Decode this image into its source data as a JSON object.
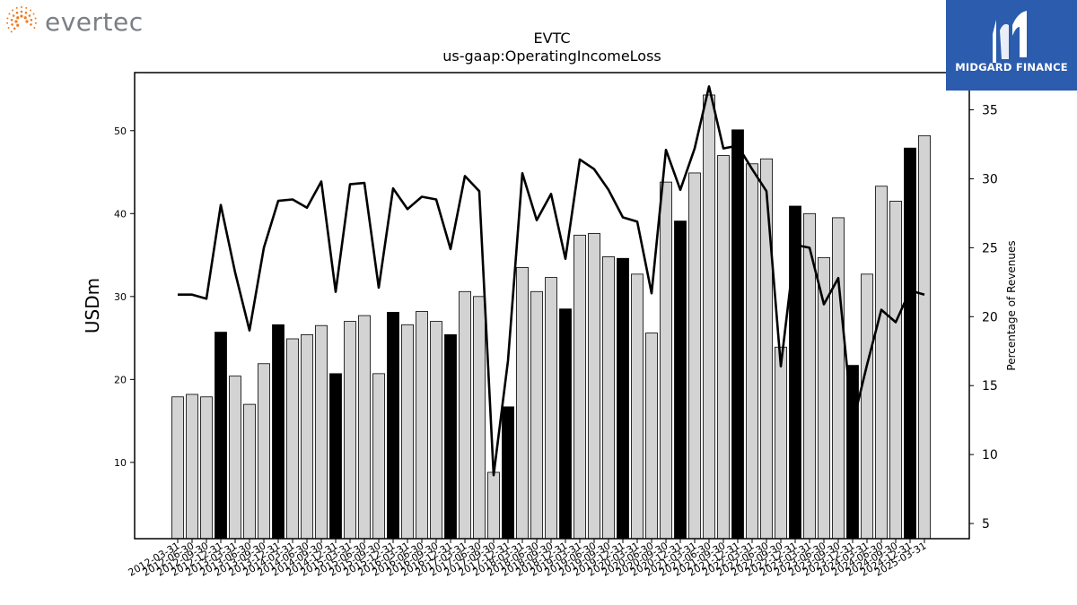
{
  "brand": {
    "left_logo_text": "evertec",
    "right_logo_text": "MIDGARD FINANCE"
  },
  "colors": {
    "annual_bar": "#000000",
    "quarter_bar": "#d3d3d3",
    "line": "#000000",
    "right_logo_bg": "#2b5cad",
    "dots_orange": "#f07b22"
  },
  "chart_data": {
    "type": "bar",
    "title": "EVTC",
    "subtitle": "us-gaap:OperatingIncomeLoss",
    "ylabel": "USDm",
    "y2label": "Percentage of Revenues",
    "ylim": [
      0.8,
      57
    ],
    "y2lim": [
      3.9,
      37.7
    ],
    "yticks": [
      10,
      20,
      30,
      40,
      50
    ],
    "y2ticks": [
      5,
      10,
      15,
      20,
      25,
      30,
      35
    ],
    "categories": [
      "2012-03-31",
      "2012-06-30",
      "2012-09-30",
      "2012-12-31",
      "2013-03-31",
      "2013-06-30",
      "2013-09-30",
      "2013-12-31",
      "2014-03-31",
      "2014-06-30",
      "2014-09-30",
      "2014-12-31",
      "2015-03-31",
      "2015-06-30",
      "2015-09-30",
      "2015-12-31",
      "2016-03-31",
      "2016-06-30",
      "2016-09-30",
      "2016-12-31",
      "2017-03-31",
      "2017-06-30",
      "2017-09-30",
      "2017-12-31",
      "2018-03-31",
      "2018-06-30",
      "2018-09-30",
      "2018-12-31",
      "2019-03-31",
      "2019-06-30",
      "2019-09-30",
      "2019-12-31",
      "2020-03-31",
      "2020-06-30",
      "2020-09-30",
      "2020-12-31",
      "2021-03-31",
      "2021-06-30",
      "2021-09-30",
      "2021-12-31",
      "2022-03-31",
      "2022-06-30",
      "2022-09-30",
      "2022-12-31",
      "2023-03-31",
      "2023-06-30",
      "2023-09-30",
      "2023-12-31",
      "2024-03-31",
      "2024-06-30",
      "2024-09-30",
      "2024-12-31",
      "2025-03-31"
    ],
    "series": [
      {
        "axis": "left",
        "kind": "bar",
        "values": [
          17.9,
          18.2,
          17.9,
          25.7,
          20.4,
          17.0,
          21.9,
          26.6,
          24.9,
          25.4,
          26.5,
          20.7,
          27.0,
          27.7,
          20.7,
          28.1,
          26.6,
          28.2,
          27.0,
          25.4,
          30.6,
          30.0,
          8.8,
          16.7,
          33.5,
          30.6,
          32.3,
          28.5,
          37.4,
          37.6,
          34.8,
          34.6,
          32.7,
          25.6,
          43.8,
          39.1,
          44.9,
          54.3,
          47.0,
          50.1,
          46.0,
          46.6,
          23.9,
          40.9,
          40.0,
          34.7,
          39.5,
          21.7,
          32.7,
          43.3,
          41.5,
          47.9,
          49.4
        ],
        "annual": [
          false,
          false,
          false,
          true,
          false,
          false,
          false,
          true,
          false,
          false,
          false,
          true,
          false,
          false,
          false,
          true,
          false,
          false,
          false,
          true,
          false,
          false,
          false,
          true,
          false,
          false,
          false,
          true,
          false,
          false,
          false,
          true,
          false,
          false,
          false,
          true,
          false,
          false,
          false,
          true,
          false,
          false,
          false,
          true,
          false,
          false,
          false,
          true,
          false,
          false,
          false,
          true,
          false
        ]
      },
      {
        "axis": "right",
        "kind": "line",
        "values": [
          21.6,
          21.6,
          21.3,
          28.1,
          23.2,
          19.0,
          25.0,
          28.4,
          28.5,
          27.9,
          29.8,
          21.8,
          29.6,
          29.7,
          22.1,
          29.3,
          27.8,
          28.7,
          28.5,
          24.9,
          30.2,
          29.1,
          8.5,
          16.8,
          30.4,
          27.0,
          28.9,
          24.2,
          31.4,
          30.7,
          29.2,
          27.2,
          26.9,
          21.7,
          32.1,
          29.2,
          32.2,
          36.7,
          32.2,
          32.4,
          30.7,
          29.1,
          16.4,
          25.2,
          25.0,
          20.9,
          22.8,
          12.2,
          16.5,
          20.5,
          19.6,
          21.9,
          21.6
        ]
      }
    ]
  }
}
